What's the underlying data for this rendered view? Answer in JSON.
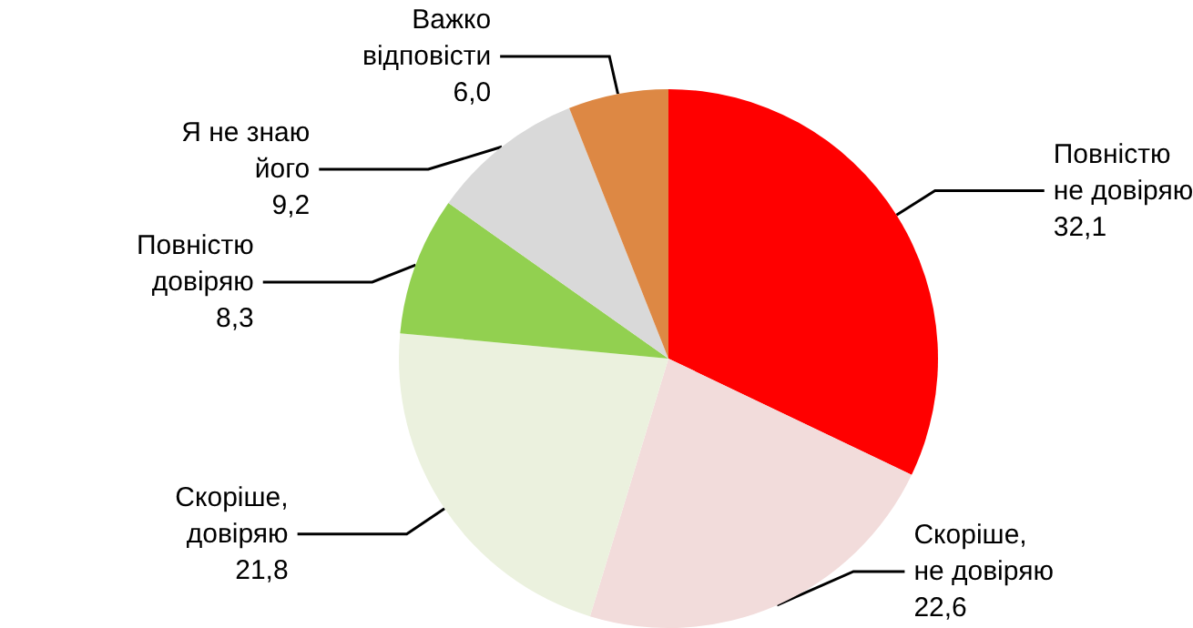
{
  "chart_data": {
    "type": "pie",
    "categories": [
      "Повністю не довіряю",
      "Скоріше, не довіряю",
      "Скоріше, довіряю",
      "Повністю довіряю",
      "Я не знаю його",
      "Важко відповісти"
    ],
    "values": [
      32.1,
      22.6,
      21.8,
      8.3,
      9.2,
      6.0
    ],
    "value_labels": [
      "32,1",
      "22,6",
      "21,8",
      "8,3",
      "9,2",
      "6,0"
    ],
    "colors": [
      "#ff0000",
      "#f2dcdb",
      "#ebf1de",
      "#92d050",
      "#d9d9d9",
      "#dd8844"
    ],
    "legend": false
  }
}
